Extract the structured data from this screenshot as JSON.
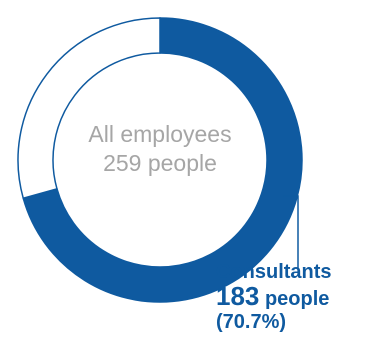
{
  "colors": {
    "consultants": "#0f5aa0",
    "other": "#ffffff",
    "outline": "#0f5aa0",
    "center_text": "#a6a6a6"
  },
  "chart_data": {
    "type": "pie",
    "center_label": {
      "line1": "All employees",
      "line2": "259 people"
    },
    "total": 259,
    "slices": [
      {
        "name": "Consultants",
        "value": 183,
        "percent": 70.7
      },
      {
        "value": 76,
        "percent": 29.3
      }
    ],
    "callout": {
      "name": "Consultants",
      "value": "183",
      "unit": "people",
      "percent_text": "(70.7%)"
    }
  }
}
